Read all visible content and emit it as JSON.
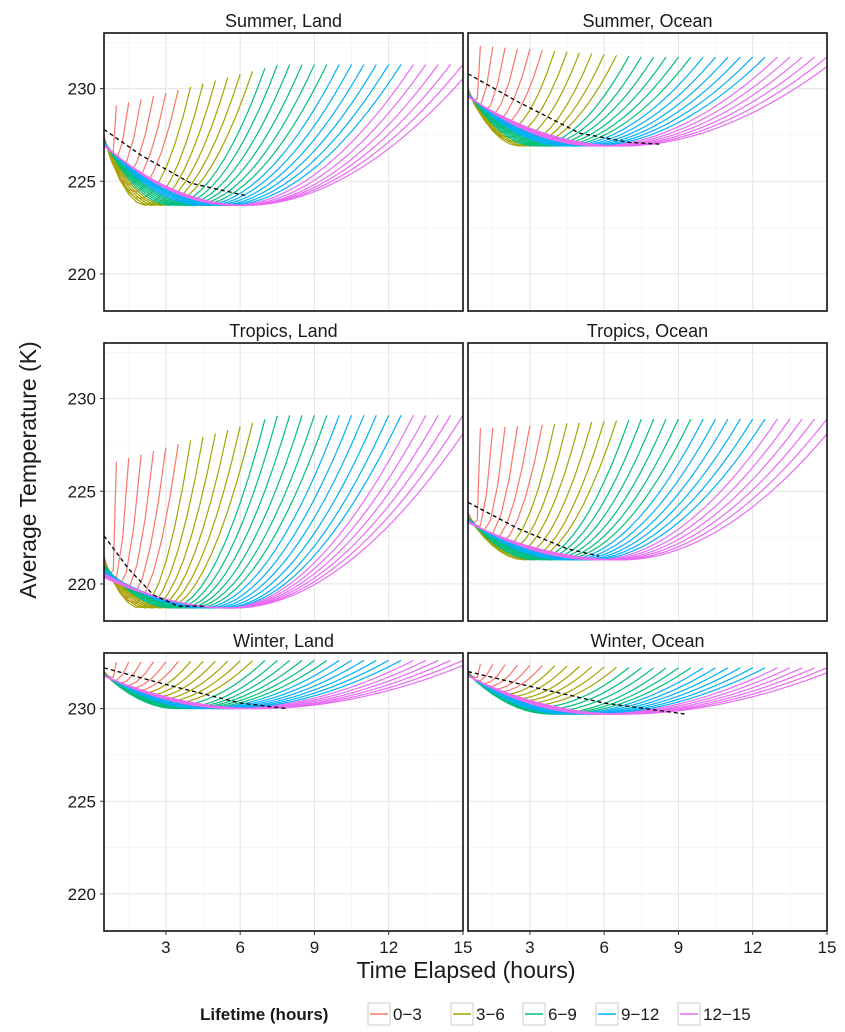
{
  "chart_data": {
    "type": "line",
    "ylabel": "Average Temperature (K)",
    "xlabel": "Time Elapsed (hours)",
    "xlim": [
      0.5,
      15
    ],
    "ylim": [
      218,
      233
    ],
    "x_ticks": [
      3,
      6,
      9,
      12,
      15
    ],
    "y_ticks": [
      220,
      225,
      230
    ],
    "grid": true,
    "legend": {
      "position": "bottom",
      "title": "Lifetime (hours)",
      "entries": [
        {
          "label": "0−3",
          "color": "#F8766D"
        },
        {
          "label": "3−6",
          "color": "#A3A500"
        },
        {
          "label": "6−9",
          "color": "#00BF7D"
        },
        {
          "label": "9−12",
          "color": "#00B0F6"
        },
        {
          "label": "12−15",
          "color": "#E76BF3"
        }
      ]
    },
    "panels": [
      {
        "title": "Summer, Land",
        "envelope": {
          "start": 227.2,
          "start_spread": 0.6,
          "min_temp": 223.7,
          "min_time": 4.0,
          "end": 231.3,
          "young_end": 229.1,
          "young_rise": 1.0
        },
        "mean_curve": [
          [
            0.5,
            227.8
          ],
          [
            2.0,
            226.4
          ],
          [
            4.0,
            224.9
          ],
          [
            6.3,
            224.2
          ]
        ]
      },
      {
        "title": "Summer, Ocean",
        "envelope": {
          "start": 229.8,
          "start_spread": 0.5,
          "min_temp": 226.9,
          "min_time": 5.0,
          "end": 231.7,
          "young_end": 232.3,
          "young_rise": 1.4
        },
        "mean_curve": [
          [
            0.5,
            230.8
          ],
          [
            2.5,
            229.3
          ],
          [
            5.0,
            227.6
          ],
          [
            7.0,
            227.1
          ],
          [
            8.3,
            227.0
          ]
        ]
      },
      {
        "title": "Tropics, Land",
        "envelope": {
          "start": 221.0,
          "start_spread": 1.3,
          "min_temp": 218.7,
          "min_time": 3.5,
          "end": 229.1,
          "young_end": 226.6,
          "young_rise": 2.0
        },
        "mean_curve": [
          [
            0.5,
            222.6
          ],
          [
            1.5,
            220.8
          ],
          [
            2.5,
            219.4
          ],
          [
            3.5,
            218.8
          ],
          [
            4.6,
            218.8
          ]
        ]
      },
      {
        "title": "Tropics, Ocean",
        "envelope": {
          "start": 223.6,
          "start_spread": 0.6,
          "min_temp": 221.3,
          "min_time": 5.5,
          "end": 228.9,
          "young_end": 228.4,
          "young_rise": 2.0
        },
        "mean_curve": [
          [
            0.5,
            224.4
          ],
          [
            2.5,
            223.0
          ],
          [
            4.5,
            221.9
          ],
          [
            5.8,
            221.5
          ]
        ]
      },
      {
        "title": "Winter, Land",
        "envelope": {
          "start": 231.9,
          "start_spread": 0.3,
          "min_temp": 230.0,
          "min_time": 7.0,
          "end": 232.6,
          "young_end": 232.5,
          "young_rise": 0.3
        },
        "mean_curve": [
          [
            0.5,
            232.2
          ],
          [
            3.0,
            231.3
          ],
          [
            6.0,
            230.3
          ],
          [
            7.9,
            230.0
          ]
        ]
      },
      {
        "title": "Winter, Ocean",
        "envelope": {
          "start": 231.9,
          "start_spread": 0.3,
          "min_temp": 229.7,
          "min_time": 8.0,
          "end": 232.2,
          "young_end": 232.4,
          "young_rise": 0.3
        },
        "mean_curve": [
          [
            0.5,
            232.0
          ],
          [
            3.0,
            231.2
          ],
          [
            6.0,
            230.3
          ],
          [
            9.3,
            229.7
          ]
        ]
      }
    ]
  }
}
